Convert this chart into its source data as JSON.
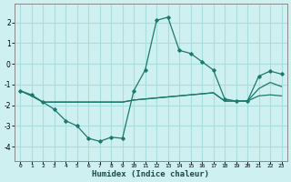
{
  "xlabel": "Humidex (Indice chaleur)",
  "background_color": "#cff0f0",
  "grid_color": "#aadddd",
  "line_color": "#1a7a6e",
  "xlim": [
    -0.5,
    23.5
  ],
  "ylim": [
    -4.7,
    2.9
  ],
  "xticks": [
    0,
    1,
    2,
    3,
    4,
    5,
    6,
    7,
    8,
    9,
    10,
    11,
    12,
    13,
    14,
    15,
    16,
    17,
    18,
    19,
    20,
    21,
    22,
    23
  ],
  "yticks": [
    -4,
    -3,
    -2,
    -1,
    0,
    1,
    2
  ],
  "line1_x": [
    0,
    1,
    2,
    3,
    4,
    5,
    6,
    7,
    8,
    9,
    10,
    11,
    12,
    13,
    14,
    15,
    16,
    17,
    18,
    19,
    20,
    21,
    22,
    23
  ],
  "line1_y": [
    -1.3,
    -1.5,
    -1.85,
    -2.2,
    -2.75,
    -3.0,
    -3.6,
    -3.75,
    -3.55,
    -3.6,
    -1.3,
    -0.3,
    2.1,
    2.25,
    0.65,
    0.5,
    0.1,
    -0.3,
    -1.7,
    -1.8,
    -1.8,
    -0.6,
    -0.35,
    -0.5
  ],
  "line2_x": [
    0,
    1,
    2,
    3,
    4,
    5,
    6,
    7,
    8,
    9,
    10,
    11,
    12,
    13,
    14,
    15,
    16,
    17,
    18,
    19,
    20,
    21,
    22,
    23
  ],
  "line2_y": [
    -1.3,
    -1.55,
    -1.85,
    -1.85,
    -1.85,
    -1.85,
    -1.85,
    -1.85,
    -1.85,
    -1.85,
    -1.75,
    -1.7,
    -1.65,
    -1.6,
    -1.55,
    -1.5,
    -1.45,
    -1.4,
    -1.8,
    -1.8,
    -1.8,
    -1.55,
    -1.5,
    -1.55
  ],
  "line3_x": [
    0,
    1,
    2,
    3,
    4,
    5,
    6,
    7,
    8,
    9,
    10,
    11,
    12,
    13,
    14,
    15,
    16,
    17,
    18,
    19,
    20,
    21,
    22,
    23
  ],
  "line3_y": [
    -1.3,
    -1.55,
    -1.85,
    -1.85,
    -1.85,
    -1.85,
    -1.85,
    -1.85,
    -1.85,
    -1.85,
    -1.75,
    -1.7,
    -1.65,
    -1.6,
    -1.55,
    -1.5,
    -1.45,
    -1.4,
    -1.8,
    -1.8,
    -1.8,
    -1.2,
    -0.9,
    -1.1
  ]
}
